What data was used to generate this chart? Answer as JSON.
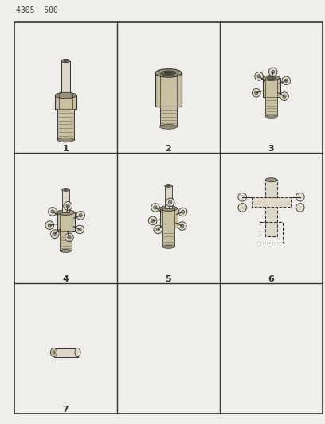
{
  "title": "4305  500",
  "bg_color": "#f0eeea",
  "line_color": "#333333",
  "part_color": "#c8c0a0",
  "part_dark": "#9a9278",
  "part_light": "#ddd8c8",
  "thread_color": "#888070",
  "figsize": [
    4.08,
    5.33
  ],
  "dpi": 100,
  "cell_labels": [
    "1",
    "2",
    "3",
    "4",
    "5",
    "6",
    "7",
    "",
    ""
  ]
}
